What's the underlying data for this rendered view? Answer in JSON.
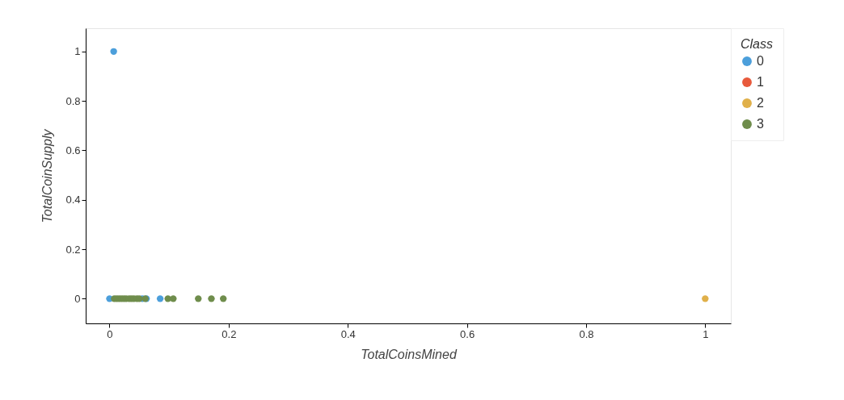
{
  "chart_data": {
    "type": "scatter",
    "xlabel": "TotalCoinsMined",
    "ylabel": "TotalCoinSupply",
    "legend_title": "Class",
    "legend": "right",
    "grid": false,
    "marker": "circle",
    "xlim": [
      -0.04,
      1.043
    ],
    "ylim": [
      -0.1,
      1.094
    ],
    "xticks": [
      0,
      0.2,
      0.4,
      0.6,
      0.8,
      1
    ],
    "yticks": [
      0,
      0.2,
      0.4,
      0.6,
      0.8,
      1
    ],
    "series": [
      {
        "name": "0",
        "color": "#4c9fdb",
        "x": [
          0.007,
          0,
          0.055,
          0.062,
          0.085
        ],
        "values": [
          1,
          0,
          0,
          0,
          0
        ]
      },
      {
        "name": "1",
        "color": "#e85a3c"
      },
      {
        "name": "2",
        "color": "#e0b04a",
        "x": [
          1
        ],
        "values": [
          0
        ]
      },
      {
        "name": "3",
        "color": "#6f8d4c",
        "x": [
          0.008,
          0.012,
          0.016,
          0.02,
          0.024,
          0.028,
          0.033,
          0.037,
          0.041,
          0.046,
          0.05,
          0.06,
          0.098,
          0.107,
          0.149,
          0.171,
          0.191
        ],
        "values": [
          0,
          0,
          0,
          0,
          0,
          0,
          0,
          0,
          0,
          0,
          0,
          0,
          0,
          0,
          0,
          0,
          0
        ]
      }
    ]
  }
}
